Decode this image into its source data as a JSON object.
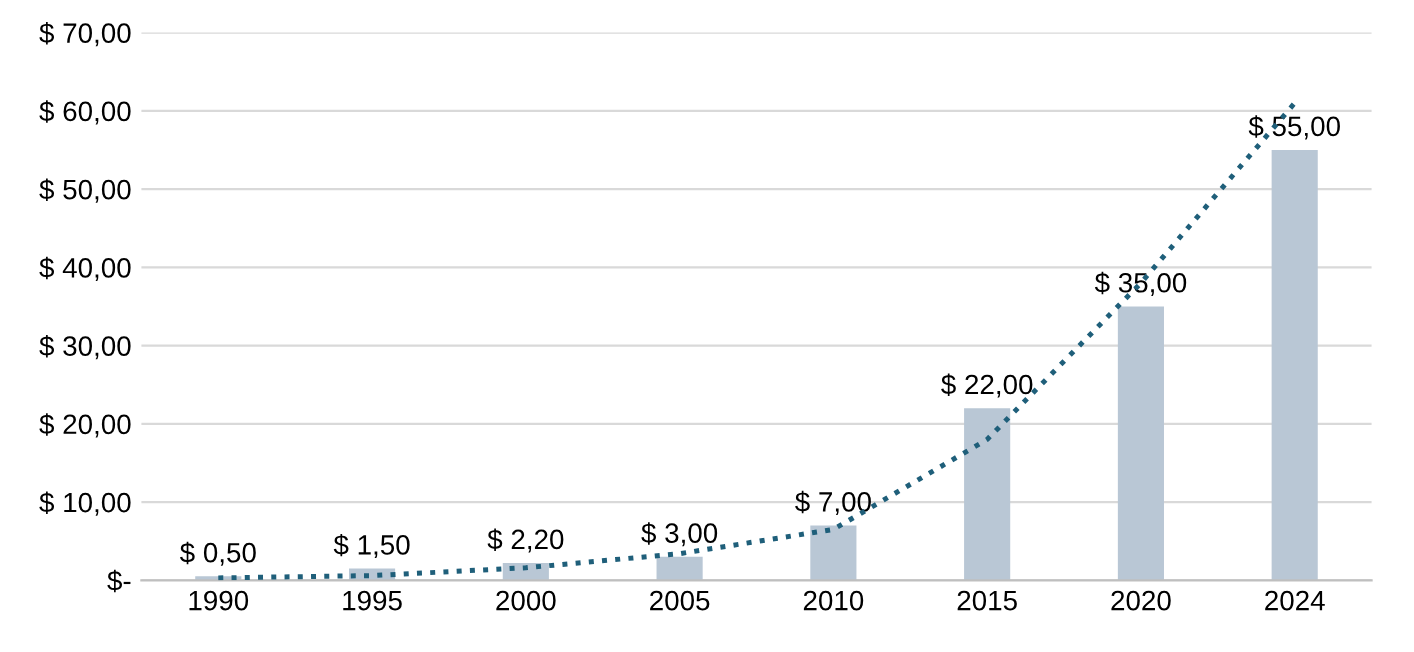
{
  "chart_data": {
    "type": "bar",
    "categories": [
      "1990",
      "1995",
      "2000",
      "2005",
      "2010",
      "2015",
      "2020",
      "2024"
    ],
    "series": [
      {
        "color": "#b9c7d5",
        "values": [
          0.5,
          1.5,
          2.2,
          3.0,
          7.0,
          22.0,
          35.0,
          55.0
        ],
        "value_labels": [
          "$ 0,50",
          "$ 1,50",
          "$ 2,20",
          "$ 3,00",
          "$ 7,00",
          "$ 22,00",
          "$ 35,00",
          "$ 55,00"
        ]
      },
      {
        "type": "line",
        "color": "#1f5f7a",
        "line_style": "dotted",
        "values": [
          0.3,
          0.6,
          1.6,
          3.4,
          6.5,
          18,
          38,
          61
        ]
      }
    ],
    "ylim": [
      0,
      70
    ],
    "yticks": [
      {
        "value": 0,
        "label": "$-"
      },
      {
        "value": 10,
        "label": "$ 10,00"
      },
      {
        "value": 20,
        "label": "$ 20,00"
      },
      {
        "value": 30,
        "label": "$ 30,00"
      },
      {
        "value": 40,
        "label": "$ 40,00"
      },
      {
        "value": 50,
        "label": "$ 50,00"
      },
      {
        "value": 60,
        "label": "$ 60,00"
      },
      {
        "value": 70,
        "label": "$ 70,00"
      }
    ],
    "grid": "y"
  }
}
